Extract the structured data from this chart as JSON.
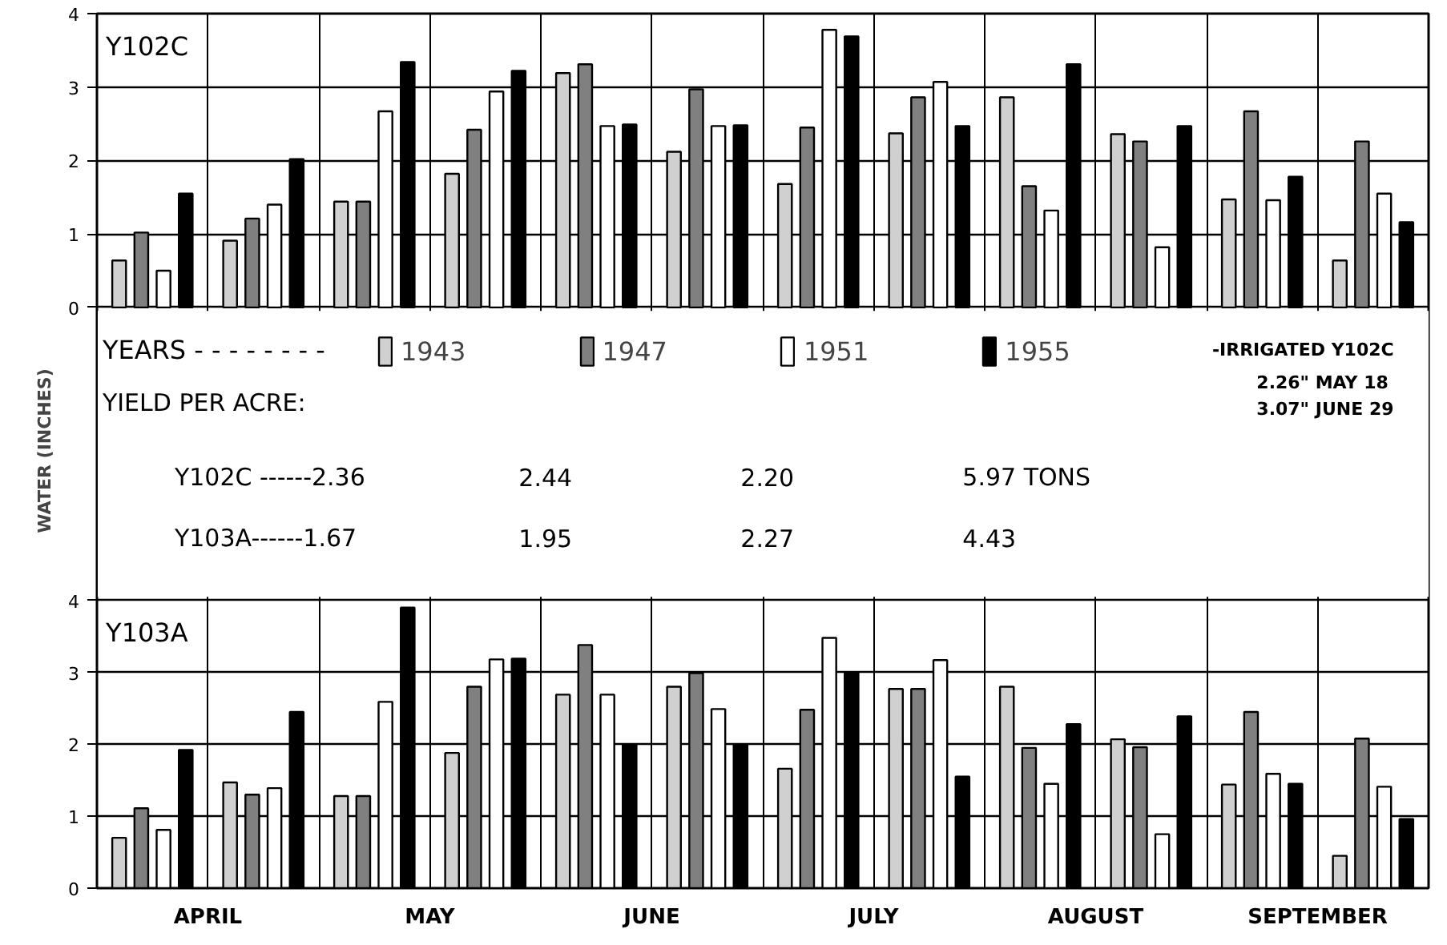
{
  "chart_data": [
    {
      "type": "bar",
      "title": "Y102C",
      "ylabel": "WATER (INCHES)",
      "legend_title": "YEARS - - - - - - - -",
      "legend": "bottom",
      "grid": true,
      "tick_labels": "y",
      "categories": [
        null,
        null,
        null,
        null,
        null,
        null,
        null,
        null,
        null,
        null,
        null,
        null
      ],
      "ylim": [
        0,
        4
      ],
      "yticks": [
        0,
        1,
        2,
        3,
        4
      ],
      "series": [
        {
          "name": "1943",
          "color": "#d0d0d0",
          "values": [
            0.64,
            0.91,
            1.44,
            1.82,
            3.19,
            2.12,
            1.68,
            2.37,
            2.86,
            2.36,
            1.47,
            0.64
          ]
        },
        {
          "name": "1947",
          "color": "#808080",
          "values": [
            1.02,
            1.21,
            1.44,
            2.42,
            3.31,
            2.97,
            2.45,
            2.86,
            1.65,
            2.26,
            2.67,
            2.26
          ]
        },
        {
          "name": "1951",
          "color": "#ffffff",
          "values": [
            0.5,
            1.4,
            2.67,
            2.94,
            2.47,
            2.47,
            3.78,
            3.07,
            1.32,
            0.82,
            1.46,
            1.55
          ]
        },
        {
          "name": "1955",
          "color": "#000000",
          "values": [
            1.55,
            2.02,
            3.34,
            3.22,
            2.49,
            2.48,
            3.69,
            2.47,
            3.31,
            2.47,
            1.78,
            1.16
          ]
        }
      ],
      "annotations": [
        "-IRRIGATED Y102C",
        "2.26\" MAY 18",
        "3.07\" JUNE 29",
        "YIELD PER ACRE:",
        "Y102C ------2.36",
        "2.44",
        "2.20",
        "5.97 TONS",
        "Y103A------1.67",
        "1.95",
        "2.27",
        "4.43"
      ]
    },
    {
      "type": "bar",
      "title": "Y103A",
      "grid": true,
      "legend": false,
      "categories": [
        null,
        null,
        null,
        null,
        null,
        null,
        null,
        null,
        null,
        null,
        null,
        null
      ],
      "ylim": [
        0,
        4
      ],
      "yticks": [
        0,
        1,
        2,
        3,
        4
      ],
      "series": [
        {
          "color": "#d0d0d0",
          "values": [
            0.7,
            1.47,
            1.28,
            1.88,
            2.69,
            2.8,
            1.66,
            2.77,
            2.8,
            2.07,
            1.44,
            0.45
          ]
        },
        {
          "color": "#808080",
          "values": [
            1.11,
            1.3,
            1.28,
            2.8,
            3.38,
            2.99,
            2.48,
            2.77,
            1.95,
            1.96,
            2.45,
            2.08
          ]
        },
        {
          "color": "#ffffff",
          "values": [
            0.81,
            1.39,
            2.59,
            3.18,
            2.69,
            2.49,
            3.48,
            3.17,
            1.45,
            0.75,
            1.59,
            1.41
          ]
        },
        {
          "color": "#000000",
          "values": [
            1.92,
            2.45,
            3.9,
            3.19,
            2.0,
            2.0,
            3.0,
            1.55,
            2.28,
            2.39,
            1.45,
            0.96
          ]
        }
      ],
      "annotations": [
        "APRIL",
        "MAY",
        "JUNE",
        "JULY",
        "AUGUST",
        "SEPTEMBER"
      ]
    }
  ]
}
